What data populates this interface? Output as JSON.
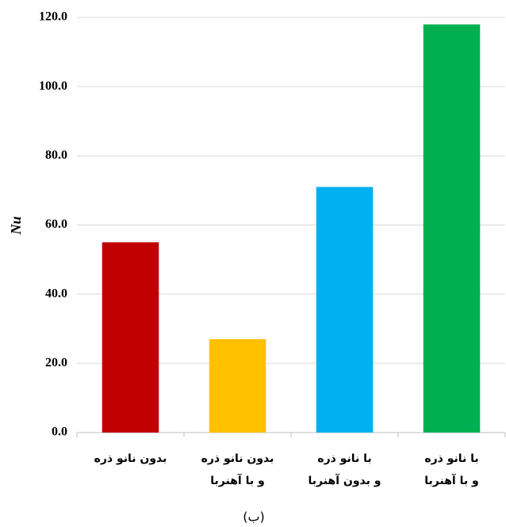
{
  "chart_data": {
    "type": "bar",
    "y_label": "Nu",
    "caption": "(ب)",
    "categories": [
      [
        "بدون نانو ذره"
      ],
      [
        "بدون نانو ذره",
        "و با آهنربا"
      ],
      [
        "با نانو ذره",
        "و بدون آهنربا"
      ],
      [
        "با نانو ذره",
        "و با آهنربا"
      ]
    ],
    "values": [
      55,
      27,
      71,
      118
    ],
    "colors": [
      "#c00000",
      "#ffc000",
      "#00b0f0",
      "#00b050"
    ],
    "ylim": [
      0,
      120
    ],
    "yticks": [
      {
        "value": 0,
        "label": "0.0"
      },
      {
        "value": 20,
        "label": "20.0"
      },
      {
        "value": 40,
        "label": "40.0"
      },
      {
        "value": 60,
        "label": "60.0"
      },
      {
        "value": 80,
        "label": "80.0"
      },
      {
        "value": 100,
        "label": "100.0"
      },
      {
        "value": 120,
        "label": "120.0"
      }
    ],
    "grid": true
  }
}
